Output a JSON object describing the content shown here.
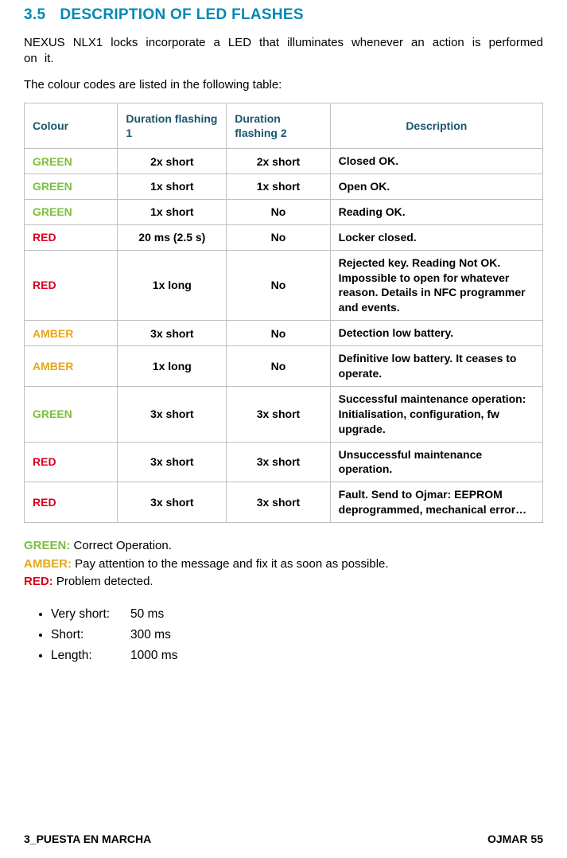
{
  "colors": {
    "accent": "#0088b3",
    "headerText": "#1a566d",
    "tableBorder": "#bfbfbf",
    "green": "#7bbf3f",
    "red": "#d9001b",
    "amber": "#e6a817",
    "text": "#000000",
    "background": "#ffffff"
  },
  "heading": {
    "number": "3.5",
    "title": "DESCRIPTION OF LED FLASHES"
  },
  "paragraphs": {
    "p1": "NEXUS NLX1 locks incorporate a LED that illuminates whenever an action is performed on it.",
    "p2": "The colour codes are listed in the following table:"
  },
  "table": {
    "columns": [
      "Colour",
      "Duration flashing 1",
      "Duration flashing 2",
      "Description"
    ],
    "col_widths_pct": [
      18,
      21,
      20,
      41
    ],
    "rows": [
      {
        "colour": "GREEN",
        "colour_class": "c-green",
        "d1": "2x short",
        "d2": "2x short",
        "desc": "Closed OK."
      },
      {
        "colour": "GREEN",
        "colour_class": "c-green",
        "d1": "1x short",
        "d2": "1x short",
        "desc": "Open OK."
      },
      {
        "colour": "GREEN",
        "colour_class": "c-green",
        "d1": "1x short",
        "d2": "No",
        "desc": "Reading OK."
      },
      {
        "colour": "RED",
        "colour_class": "c-red",
        "d1": "20 ms (2.5 s)",
        "d2": "No",
        "desc": "Locker closed."
      },
      {
        "colour": "RED",
        "colour_class": "c-red",
        "d1": "1x long",
        "d2": "No",
        "desc": "Rejected key. Reading Not OK. Impossible to open for whatever reason. Details in NFC programmer and events."
      },
      {
        "colour": "AMBER",
        "colour_class": "c-amber",
        "d1": "3x short",
        "d2": "No",
        "desc": "Detection low battery."
      },
      {
        "colour": "AMBER",
        "colour_class": "c-amber",
        "d1": "1x long",
        "d2": "No",
        "desc": "Definitive low battery. It ceases to operate."
      },
      {
        "colour": "GREEN",
        "colour_class": "c-green",
        "d1": "3x short",
        "d2": "3x short",
        "desc": "Successful maintenance operation: Initialisation, configuration, fw upgrade."
      },
      {
        "colour": "RED",
        "colour_class": "c-red",
        "d1": "3x short",
        "d2": "3x short",
        "desc": "Unsuccessful maintenance operation."
      },
      {
        "colour": "RED",
        "colour_class": "c-red",
        "d1": "3x short",
        "d2": "3x short",
        "desc": "Fault.  Send to Ojmar: EEPROM deprogrammed, mechanical error…"
      }
    ]
  },
  "legend": {
    "green": {
      "label": "GREEN:",
      "text": " Correct Operation."
    },
    "amber": {
      "label": "AMBER:",
      "text": " Pay attention to the message and fix it as soon as possible."
    },
    "red": {
      "label": "RED:",
      "text": " Problem detected."
    }
  },
  "timings": [
    {
      "k": "Very short:",
      "v": "50 ms"
    },
    {
      "k": "Short:",
      "v": "300 ms"
    },
    {
      "k": "Length:",
      "v": "1000 ms"
    }
  ],
  "footer": {
    "left": "3_PUESTA EN MARCHA",
    "right": "OJMAR 55"
  }
}
